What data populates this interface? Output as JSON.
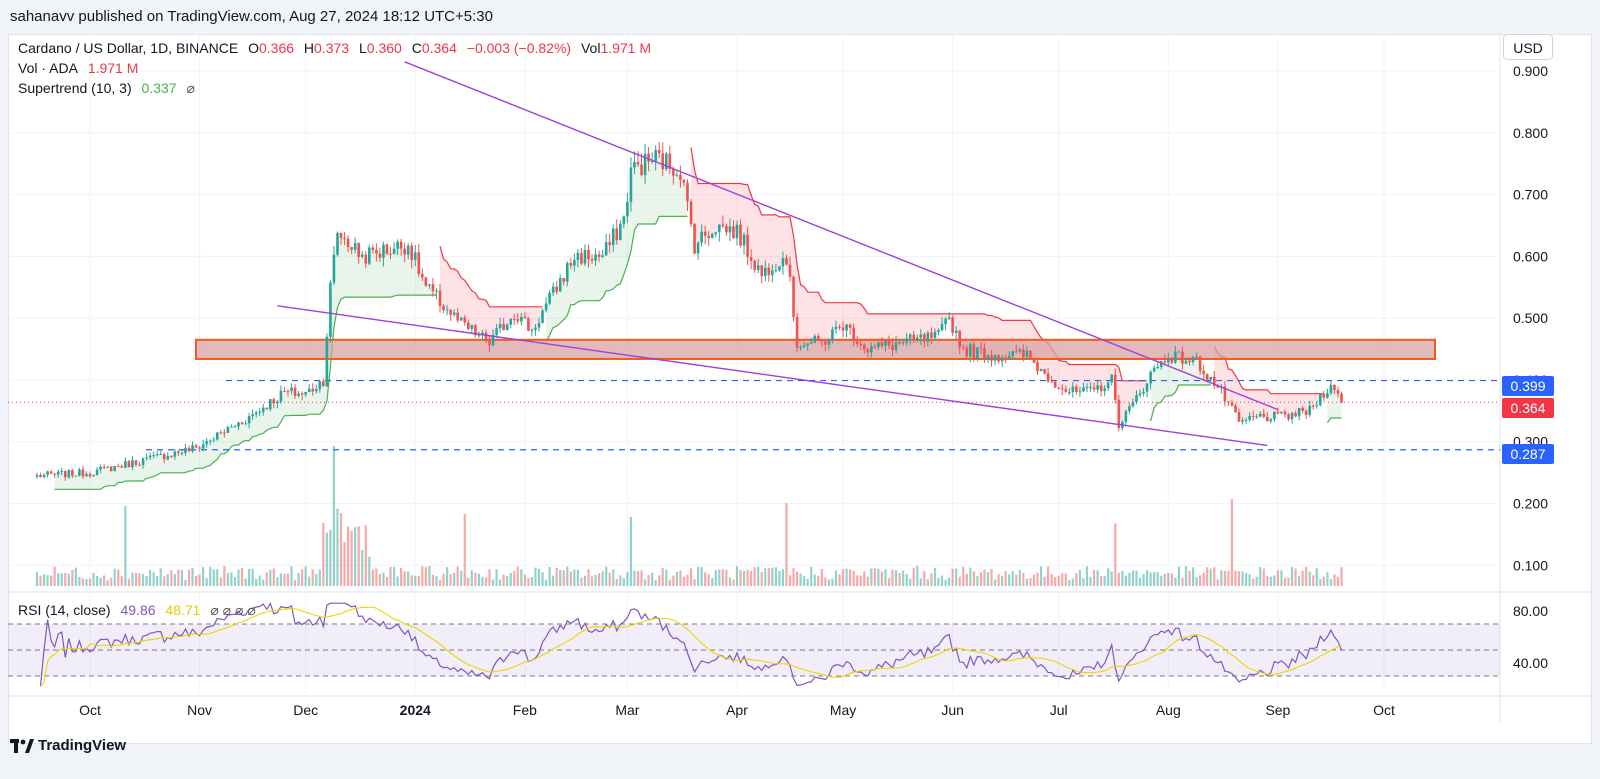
{
  "header": {
    "publisher_line": "sahanavv published on TradingView.com, Aug 27, 2024 18:12 UTC+5:30"
  },
  "legend": {
    "symbol": "Cardano / US Dollar, 1D, BINANCE",
    "o_label": "O",
    "o_value": "0.366",
    "h_label": "H",
    "h_value": "0.373",
    "l_label": "L",
    "l_value": "0.360",
    "c_label": "C",
    "c_value": "0.364",
    "change": "−0.003 (−0.82%)",
    "vol_label": "Vol",
    "vol_value": "1.971 M",
    "vol_line_label": "Vol · ADA",
    "vol_line_value": "1.971 M",
    "supertrend_label": "Supertrend (10, 3)",
    "supertrend_value": "0.337",
    "rsi_label": "RSI (14, close)",
    "rsi_value": "49.86",
    "rsi_ma_value": "48.71"
  },
  "currency_button": "USD",
  "price_tags": {
    "level_upper": "0.399",
    "last_price": "0.364",
    "level_lower": "0.287"
  },
  "footer": {
    "brand": "TradingView"
  },
  "colors": {
    "up": "#26a69a",
    "down": "#ef5350",
    "supertrend_up": "#4caf50",
    "supertrend_down": "#f23645",
    "trendline": "#a23fd6",
    "zone_fill": "#d9a1a1",
    "zone_border": "#f05a1a",
    "dashed_level": "#2962ff",
    "rsi_line": "#7e57c2",
    "rsi_ma": "#f2d300"
  },
  "chart_data": {
    "type": "candlestick",
    "symbol": "ADAUSD",
    "timeframe": "1D",
    "x_ticks": [
      "Oct",
      "Nov",
      "Dec",
      "2024",
      "Feb",
      "Mar",
      "Apr",
      "May",
      "Jun",
      "Jul",
      "Aug",
      "Sep",
      "Oct"
    ],
    "y_ticks": [
      "0.100",
      "0.200",
      "0.300",
      "0.400",
      "0.500",
      "0.600",
      "0.700",
      "0.800",
      "0.900"
    ],
    "ylim": [
      0.06,
      0.96
    ],
    "rsi_ticks": [
      "40.00",
      "80.00"
    ],
    "rsi_levels": [
      30,
      50,
      70
    ],
    "monthly_closes": [
      {
        "month": "Sep",
        "close": 0.25
      },
      {
        "month": "Oct",
        "close": 0.29
      },
      {
        "month": "Nov",
        "close": 0.38
      },
      {
        "month": "Dec",
        "close": 0.59
      },
      {
        "month": "Jan",
        "close": 0.51
      },
      {
        "month": "Feb",
        "close": 0.62
      },
      {
        "month": "Mar",
        "close": 0.64
      },
      {
        "month": "Apr",
        "close": 0.46
      },
      {
        "month": "May",
        "close": 0.46
      },
      {
        "month": "Jun",
        "close": 0.39
      },
      {
        "month": "Jul",
        "close": 0.38
      },
      {
        "month": "Aug",
        "close": 0.364
      }
    ],
    "resistance_zone": [
      0.434,
      0.465
    ],
    "horizontal_levels": [
      0.399,
      0.287
    ],
    "last_price": 0.364,
    "upper_trendline": {
      "from": {
        "date": "2023-12-29",
        "price": 0.915
      },
      "to": {
        "date": "2024-09-01",
        "price": 0.352
      }
    },
    "lower_trendline": {
      "from": {
        "date": "2023-11-23",
        "price": 0.52
      },
      "to": {
        "date": "2024-08-29",
        "price": 0.294
      }
    }
  }
}
